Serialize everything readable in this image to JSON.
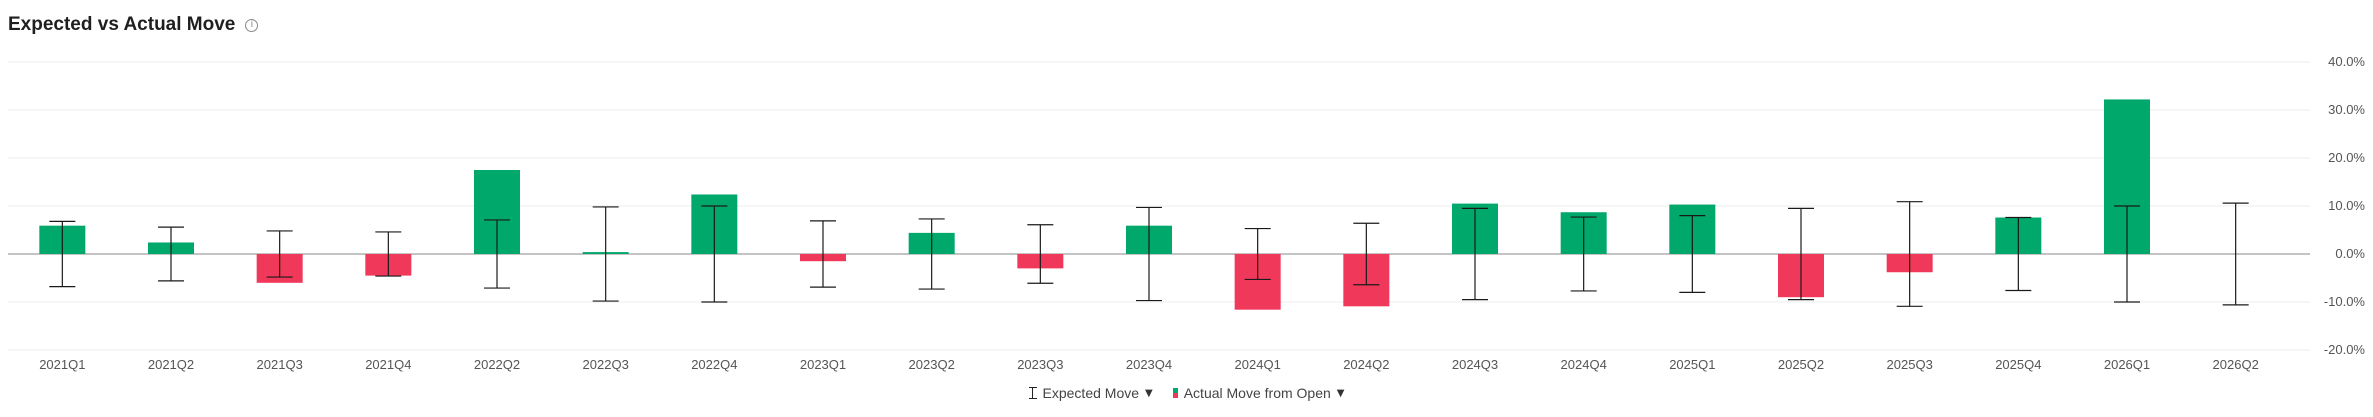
{
  "header": {
    "title": "Expected vs Actual Move",
    "info_icon": "info-circle-icon"
  },
  "legend": {
    "expected_label": "Expected Move",
    "actual_label": "Actual Move from Open",
    "expected_icon": "error-bar-icon",
    "actual_icon": "green-red-bar-icon",
    "caret_icon": "caret-down-icon"
  },
  "colors": {
    "positive": "#00a86b",
    "negative": "#f0385a",
    "errorbar": "#1a1a1a",
    "grid": "#ececec",
    "zero_line": "#888888"
  },
  "chart_data": {
    "type": "bar",
    "categories": [
      "2021Q1",
      "2021Q2",
      "2021Q3",
      "2021Q4",
      "2022Q2",
      "2022Q3",
      "2022Q4",
      "2023Q1",
      "2023Q2",
      "2023Q3",
      "2023Q4",
      "2024Q1",
      "2024Q2",
      "2024Q3",
      "2024Q4",
      "2025Q1",
      "2025Q2",
      "2025Q3",
      "2025Q4",
      "2026Q1",
      "2026Q2"
    ],
    "series": [
      {
        "name": "Actual Move from Open",
        "values": [
          5.9,
          2.4,
          -6.0,
          -4.5,
          17.5,
          0.4,
          12.4,
          -1.5,
          4.4,
          -3.0,
          5.9,
          -11.6,
          -10.9,
          10.5,
          8.7,
          10.3,
          -9.0,
          -3.8,
          7.6,
          32.2,
          null
        ]
      },
      {
        "name": "Expected Move",
        "values": [
          6.8,
          5.6,
          4.8,
          4.6,
          7.1,
          9.8,
          10.0,
          6.9,
          7.3,
          6.1,
          9.7,
          5.3,
          6.4,
          9.5,
          7.7,
          8.0,
          9.5,
          10.9,
          7.6,
          10.0,
          10.6
        ]
      }
    ],
    "y_ticks": [
      "40.0%",
      "30.0%",
      "20.0%",
      "10.0%",
      "0.0%",
      "-10.0%",
      "-20.0%"
    ],
    "ylim": [
      -20,
      40
    ],
    "y_axis_position": "right",
    "grid": true,
    "legend_position": "bottom-center"
  }
}
